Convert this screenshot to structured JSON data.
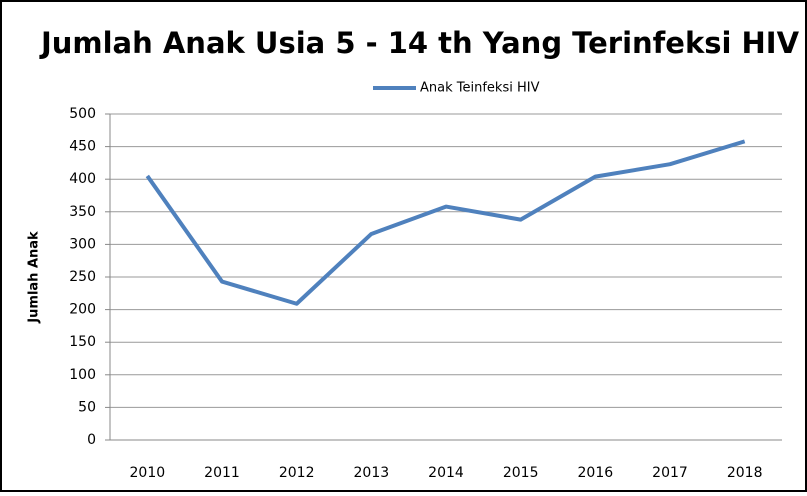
{
  "chart_data": {
    "type": "line",
    "title": "Jumlah Anak Usia 5 - 14 th Yang Terinfeksi HIV",
    "y_label": "Jumlah Anak",
    "categories": [
      "2010",
      "2011",
      "2012",
      "2013",
      "2014",
      "2015",
      "2016",
      "2017",
      "2018"
    ],
    "series": [
      {
        "name": "Anak Teinfeksi HIV",
        "color": "#4f81bd",
        "values": [
          405,
          243,
          209,
          316,
          358,
          338,
          404,
          423,
          458
        ]
      }
    ],
    "ylim": [
      0,
      500
    ],
    "yticks": [
      0,
      50,
      100,
      150,
      200,
      250,
      300,
      350,
      400,
      450,
      500
    ],
    "grid": true,
    "legend": "top"
  }
}
